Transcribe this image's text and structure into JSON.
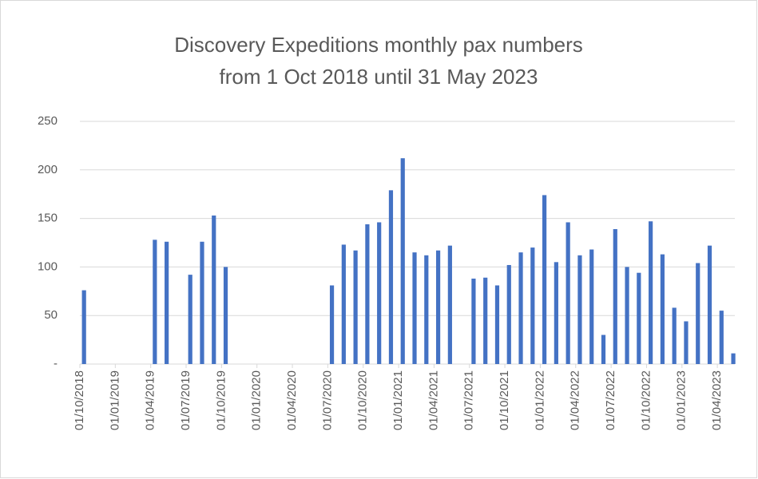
{
  "chart_data": {
    "type": "bar",
    "title": [
      "Discovery Expeditions monthly pax numbers",
      "from 1 Oct 2018 until 31 May 2023"
    ],
    "categories": [
      "01/10/2018",
      null,
      null,
      "01/01/2019",
      null,
      null,
      "01/04/2019",
      null,
      null,
      "01/07/2019",
      null,
      null,
      "01/10/2019",
      null,
      null,
      "01/01/2020",
      null,
      null,
      "01/04/2020",
      null,
      null,
      "01/07/2020",
      null,
      null,
      "01/10/2020",
      null,
      null,
      "01/01/2021",
      null,
      null,
      "01/04/2021",
      null,
      null,
      "01/07/2021",
      null,
      null,
      "01/10/2021",
      null,
      null,
      "01/01/2022",
      null,
      null,
      "01/04/2022",
      null,
      null,
      "01/07/2022",
      null,
      null,
      "01/10/2022",
      null,
      null,
      "01/01/2023",
      null,
      null,
      "01/04/2023",
      null
    ],
    "values": [
      76,
      null,
      null,
      null,
      null,
      null,
      128,
      126,
      null,
      92,
      126,
      153,
      100,
      null,
      null,
      null,
      null,
      null,
      null,
      null,
      null,
      81,
      123,
      117,
      144,
      146,
      179,
      212,
      115,
      112,
      117,
      122,
      null,
      88,
      89,
      81,
      102,
      115,
      120,
      174,
      105,
      146,
      112,
      118,
      30,
      139,
      100,
      94,
      147,
      113,
      58,
      44,
      104,
      122,
      55,
      11
    ],
    "color": "#4472c4",
    "ylim": [
      0,
      250
    ],
    "yticks": [
      {
        "value": 0,
        "label": "-"
      },
      50,
      100,
      150,
      200,
      250
    ],
    "grid": true
  }
}
